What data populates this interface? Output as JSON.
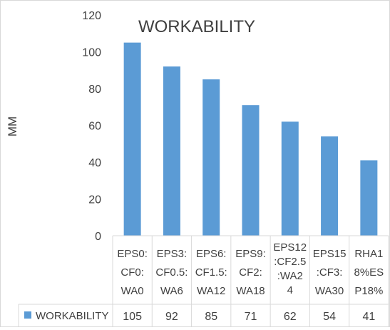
{
  "chart_data": {
    "type": "bar",
    "title": "WORKABILITY",
    "xlabel": "",
    "ylabel": "MM",
    "ylim": [
      0,
      120
    ],
    "yticks": [
      0,
      20,
      40,
      60,
      80,
      100,
      120
    ],
    "grid": false,
    "legend_position": "data-table",
    "categories": [
      [
        "EPS0:",
        "CF0:",
        "WA0"
      ],
      [
        "EPS3:",
        "CF0.5:",
        "WA6"
      ],
      [
        "EPS6:",
        "CF1.5:",
        "WA12"
      ],
      [
        "EPS9:",
        "CF2:",
        "WA18"
      ],
      [
        "EPS12",
        ":CF2.5",
        ":WA2",
        "4"
      ],
      [
        "EPS15",
        ":CF3:",
        "WA30"
      ],
      [
        "RHA1",
        "8%ES",
        "P18%"
      ]
    ],
    "series": [
      {
        "name": "WORKABILITY",
        "color": "#5b9bd5",
        "values": [
          105,
          92,
          85,
          71,
          62,
          54,
          41
        ]
      }
    ]
  }
}
